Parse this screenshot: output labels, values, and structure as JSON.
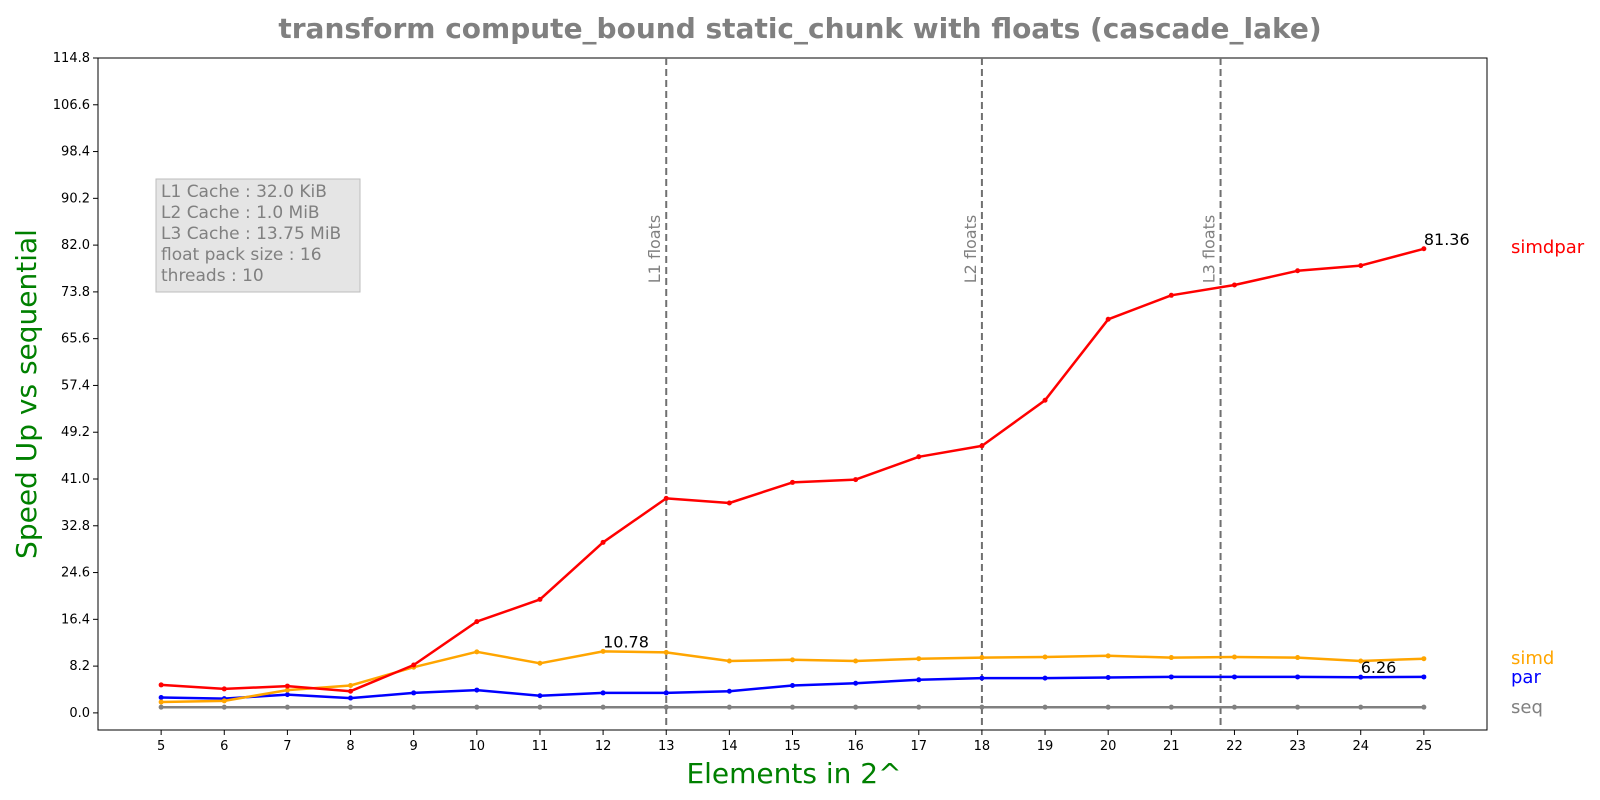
{
  "chart_data": {
    "type": "line",
    "title": "transform compute_bound static_chunk with floats  (cascade_lake)",
    "xlabel": "Elements in 2^",
    "ylabel": "Speed Up vs sequential",
    "x": [
      5,
      6,
      7,
      8,
      9,
      10,
      11,
      12,
      13,
      14,
      15,
      16,
      17,
      18,
      19,
      20,
      21,
      22,
      23,
      24,
      25
    ],
    "xlim": [
      4,
      26
    ],
    "ylim": [
      -3,
      114.8
    ],
    "yticks": [
      "0.0",
      "8.2",
      "16.4",
      "24.6",
      "32.8",
      "41.0",
      "49.2",
      "57.4",
      "65.6",
      "73.8",
      "82.0",
      "90.2",
      "98.4",
      "106.6",
      "114.8"
    ],
    "xticks": [
      "5",
      "6",
      "7",
      "8",
      "9",
      "10",
      "11",
      "12",
      "13",
      "14",
      "15",
      "16",
      "17",
      "18",
      "19",
      "20",
      "21",
      "22",
      "23",
      "24",
      "25"
    ],
    "series": [
      {
        "name": "seq",
        "color": "#808080",
        "values": [
          1,
          1,
          1,
          1,
          1,
          1,
          1,
          1,
          1,
          1,
          1,
          1,
          1,
          1,
          1,
          1,
          1,
          1,
          1,
          1,
          1
        ]
      },
      {
        "name": "par",
        "color": "#0000ff",
        "values": [
          2.7,
          2.5,
          3.2,
          2.6,
          3.5,
          4.0,
          3.0,
          3.5,
          3.5,
          3.8,
          4.8,
          5.2,
          5.8,
          6.1,
          6.1,
          6.2,
          6.3,
          6.3,
          6.3,
          6.26,
          6.3
        ]
      },
      {
        "name": "simd",
        "color": "#ffa500",
        "values": [
          1.9,
          2.1,
          4.0,
          4.8,
          8.0,
          10.7,
          8.7,
          10.78,
          10.6,
          9.1,
          9.3,
          9.1,
          9.5,
          9.7,
          9.8,
          10.0,
          9.7,
          9.8,
          9.7,
          9.1,
          9.5
        ]
      },
      {
        "name": "simdpar",
        "color": "#ff0000",
        "values": [
          4.9,
          4.2,
          4.7,
          3.8,
          8.4,
          16.0,
          19.9,
          29.9,
          37.6,
          36.8,
          40.4,
          40.9,
          44.9,
          46.8,
          54.8,
          69.0,
          73.2,
          75.0,
          77.5,
          78.4,
          81.36
        ]
      }
    ],
    "vlines": [
      {
        "x": 13,
        "label": "L1 floats"
      },
      {
        "x": 18,
        "label": "L2 floats"
      },
      {
        "x": 21.78,
        "label": "L3 floats"
      }
    ],
    "annotations": [
      {
        "x": 12,
        "y": 10.78,
        "text": "10.78"
      },
      {
        "x": 24,
        "y": 6.26,
        "text": "6.26"
      },
      {
        "x": 25,
        "y": 81.36,
        "text": "81.36"
      }
    ],
    "info_box": [
      "L1 Cache : 32.0 KiB",
      "L2 Cache : 1.0 MiB",
      "L3 Cache : 13.75 MiB",
      "float pack size : 16",
      "threads : 10"
    ],
    "legend": "right, outside plot",
    "grid": false
  }
}
